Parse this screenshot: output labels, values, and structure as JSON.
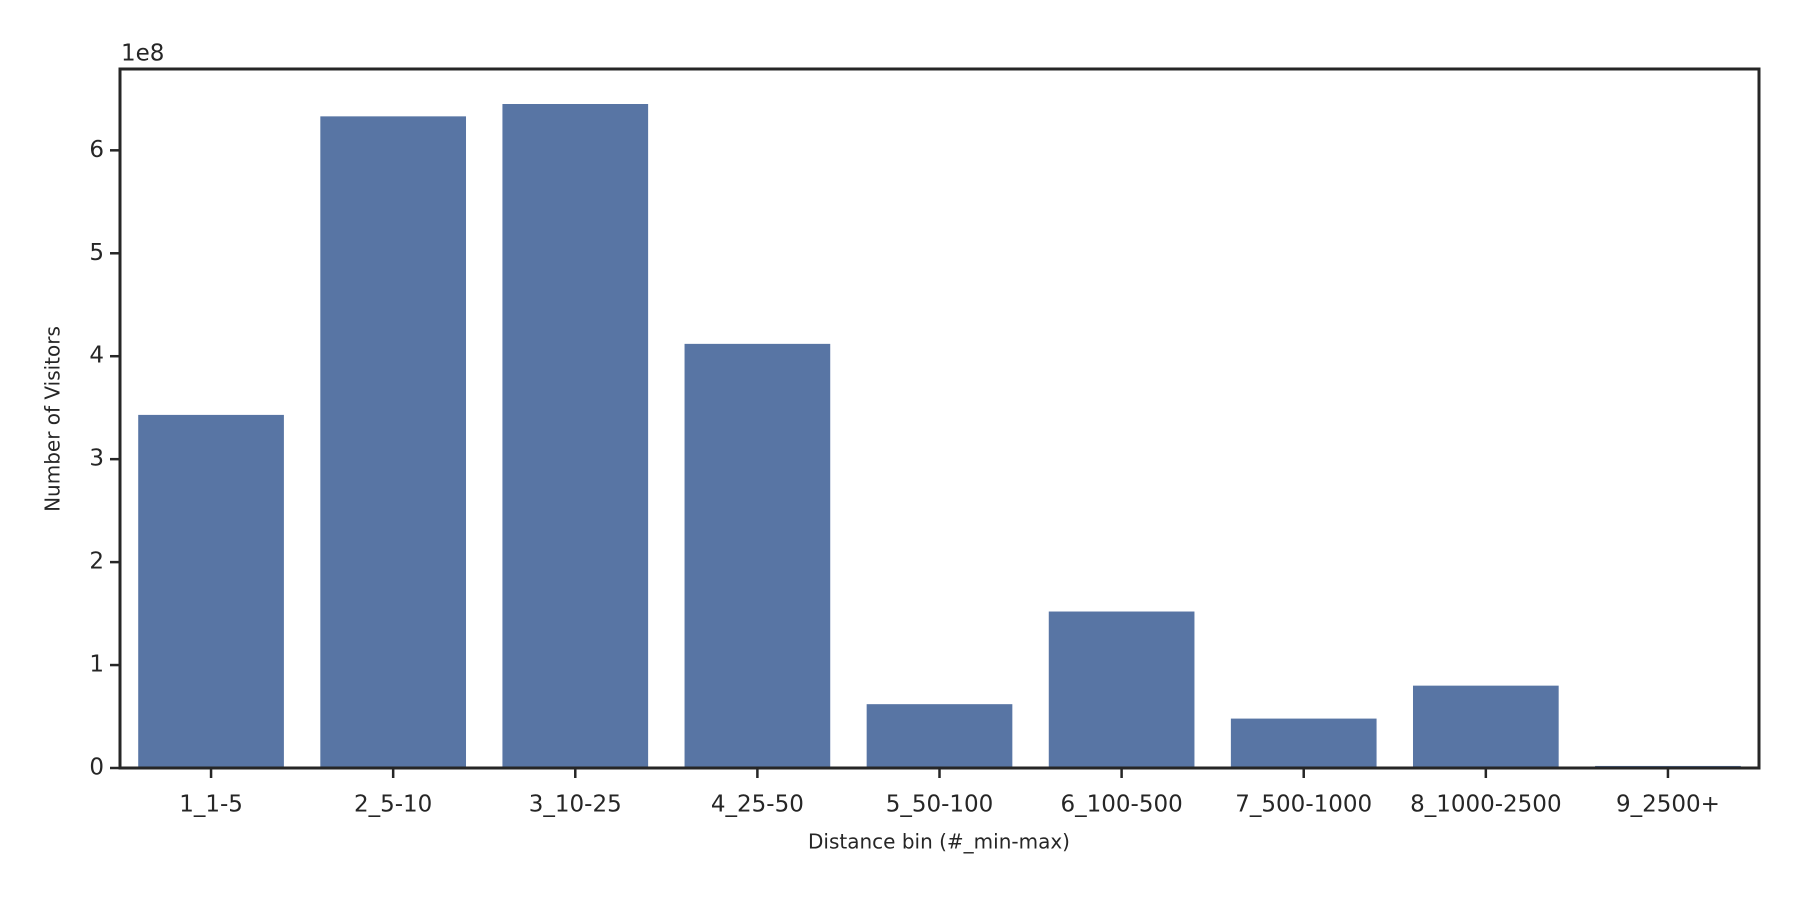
{
  "chart_data": {
    "type": "bar",
    "x_label": "Distance bin (#_min-max)",
    "y_label": "Number of Visitors",
    "y_offset_label": "1e8",
    "categories": [
      "1_1-5",
      "2_5-10",
      "3_10-25",
      "4_25-50",
      "5_50-100",
      "6_100-500",
      "7_500-1000",
      "8_1000-2500",
      "9_2500+"
    ],
    "values": [
      3.43,
      6.33,
      6.45,
      4.12,
      0.62,
      1.52,
      0.48,
      0.8,
      0.02
    ],
    "color": "#5875a4",
    "ylim": [
      0,
      6.79
    ],
    "yticks": [
      0,
      1,
      2,
      3,
      4,
      5,
      6
    ]
  }
}
